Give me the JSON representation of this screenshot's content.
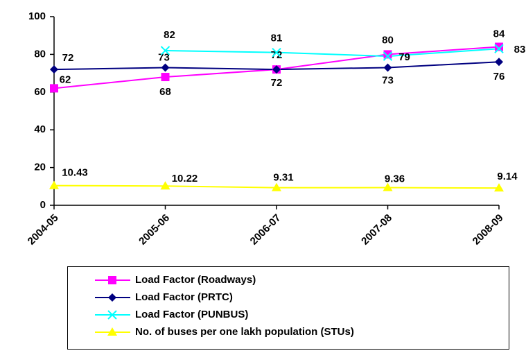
{
  "chart_data": {
    "type": "line",
    "categories": [
      "2004-05",
      "2005-06",
      "2006-07",
      "2007-08",
      "2008-09"
    ],
    "series": [
      {
        "name": "Load Factor (Roadways)",
        "color": "#ff00ff",
        "marker": "square",
        "values": [
          62,
          68,
          72,
          80,
          84
        ]
      },
      {
        "name": "Load Factor (PRTC)",
        "color": "#000080",
        "marker": "diamond",
        "values": [
          72,
          73,
          72,
          73,
          76
        ]
      },
      {
        "name": "Load Factor (PUNBUS)",
        "color": "#00ffff",
        "marker": "x",
        "values": [
          null,
          82,
          81,
          79,
          83
        ]
      },
      {
        "name": "No. of buses per one lakh population (STUs)",
        "color": "#ffff00",
        "marker": "triangle",
        "values": [
          10.43,
          10.22,
          9.31,
          9.36,
          9.14
        ]
      }
    ],
    "ylim": [
      0,
      100
    ],
    "yticks": [
      0,
      20,
      40,
      60,
      80,
      100
    ],
    "grid": false,
    "legend": "bottom"
  }
}
